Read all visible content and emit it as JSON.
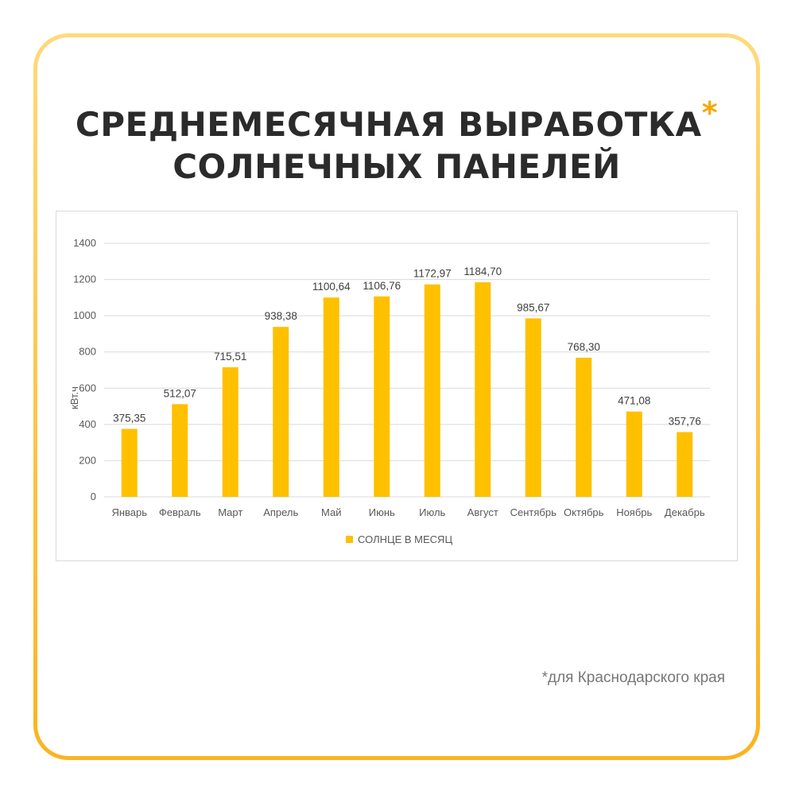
{
  "title": {
    "line1": "СРЕДНЕМЕСЯЧНАЯ ВЫРАБОТКА",
    "asterisk": "*",
    "line2": "СОЛНЕЧНЫХ ПАНЕЛЕЙ"
  },
  "footnote": "*для Краснодарского края",
  "colors": {
    "bar": "#FFC000",
    "border_gradient": [
      "#FFD97A",
      "#FBB321"
    ],
    "asterisk": "#F5A800"
  },
  "chart_data": {
    "type": "bar",
    "ylabel": "кВт.ч",
    "ylim": [
      0,
      1400
    ],
    "yticks": [
      0,
      200,
      400,
      600,
      800,
      1000,
      1200,
      1400
    ],
    "grid": true,
    "legend_position": "bottom",
    "categories": [
      "Январь",
      "Февраль",
      "Март",
      "Апрель",
      "Май",
      "Июнь",
      "Июль",
      "Август",
      "Сентябрь",
      "Октябрь",
      "Ноябрь",
      "Декабрь"
    ],
    "series": [
      {
        "name": "СОЛНЦЕ В МЕСЯЦ",
        "values": [
          375.35,
          512.07,
          715.51,
          938.38,
          1100.64,
          1106.76,
          1172.97,
          1184.7,
          985.67,
          768.3,
          471.08,
          357.76
        ],
        "labels": [
          "375,35",
          "512,07",
          "715,51",
          "938,38",
          "1100,64",
          "1106,76",
          "1172,97",
          "1184,70",
          "985,67",
          "768,30",
          "471,08",
          "357,76"
        ]
      }
    ]
  }
}
